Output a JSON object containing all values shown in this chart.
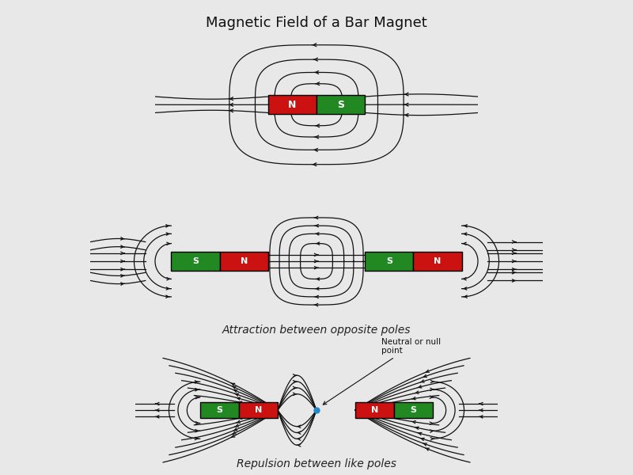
{
  "title": "Magnetic Field of a Bar Magnet",
  "title_fontsize": 13,
  "background_color": "#e8e8e8",
  "label1": "Attraction between opposite poles",
  "label2": "Repulsion between like poles",
  "label3": "Neutral or null\npoint",
  "red_color": "#cc1111",
  "green_color": "#228822",
  "text_color": "white",
  "line_color": "#111111",
  "neutral_dot_color": "#2288cc"
}
